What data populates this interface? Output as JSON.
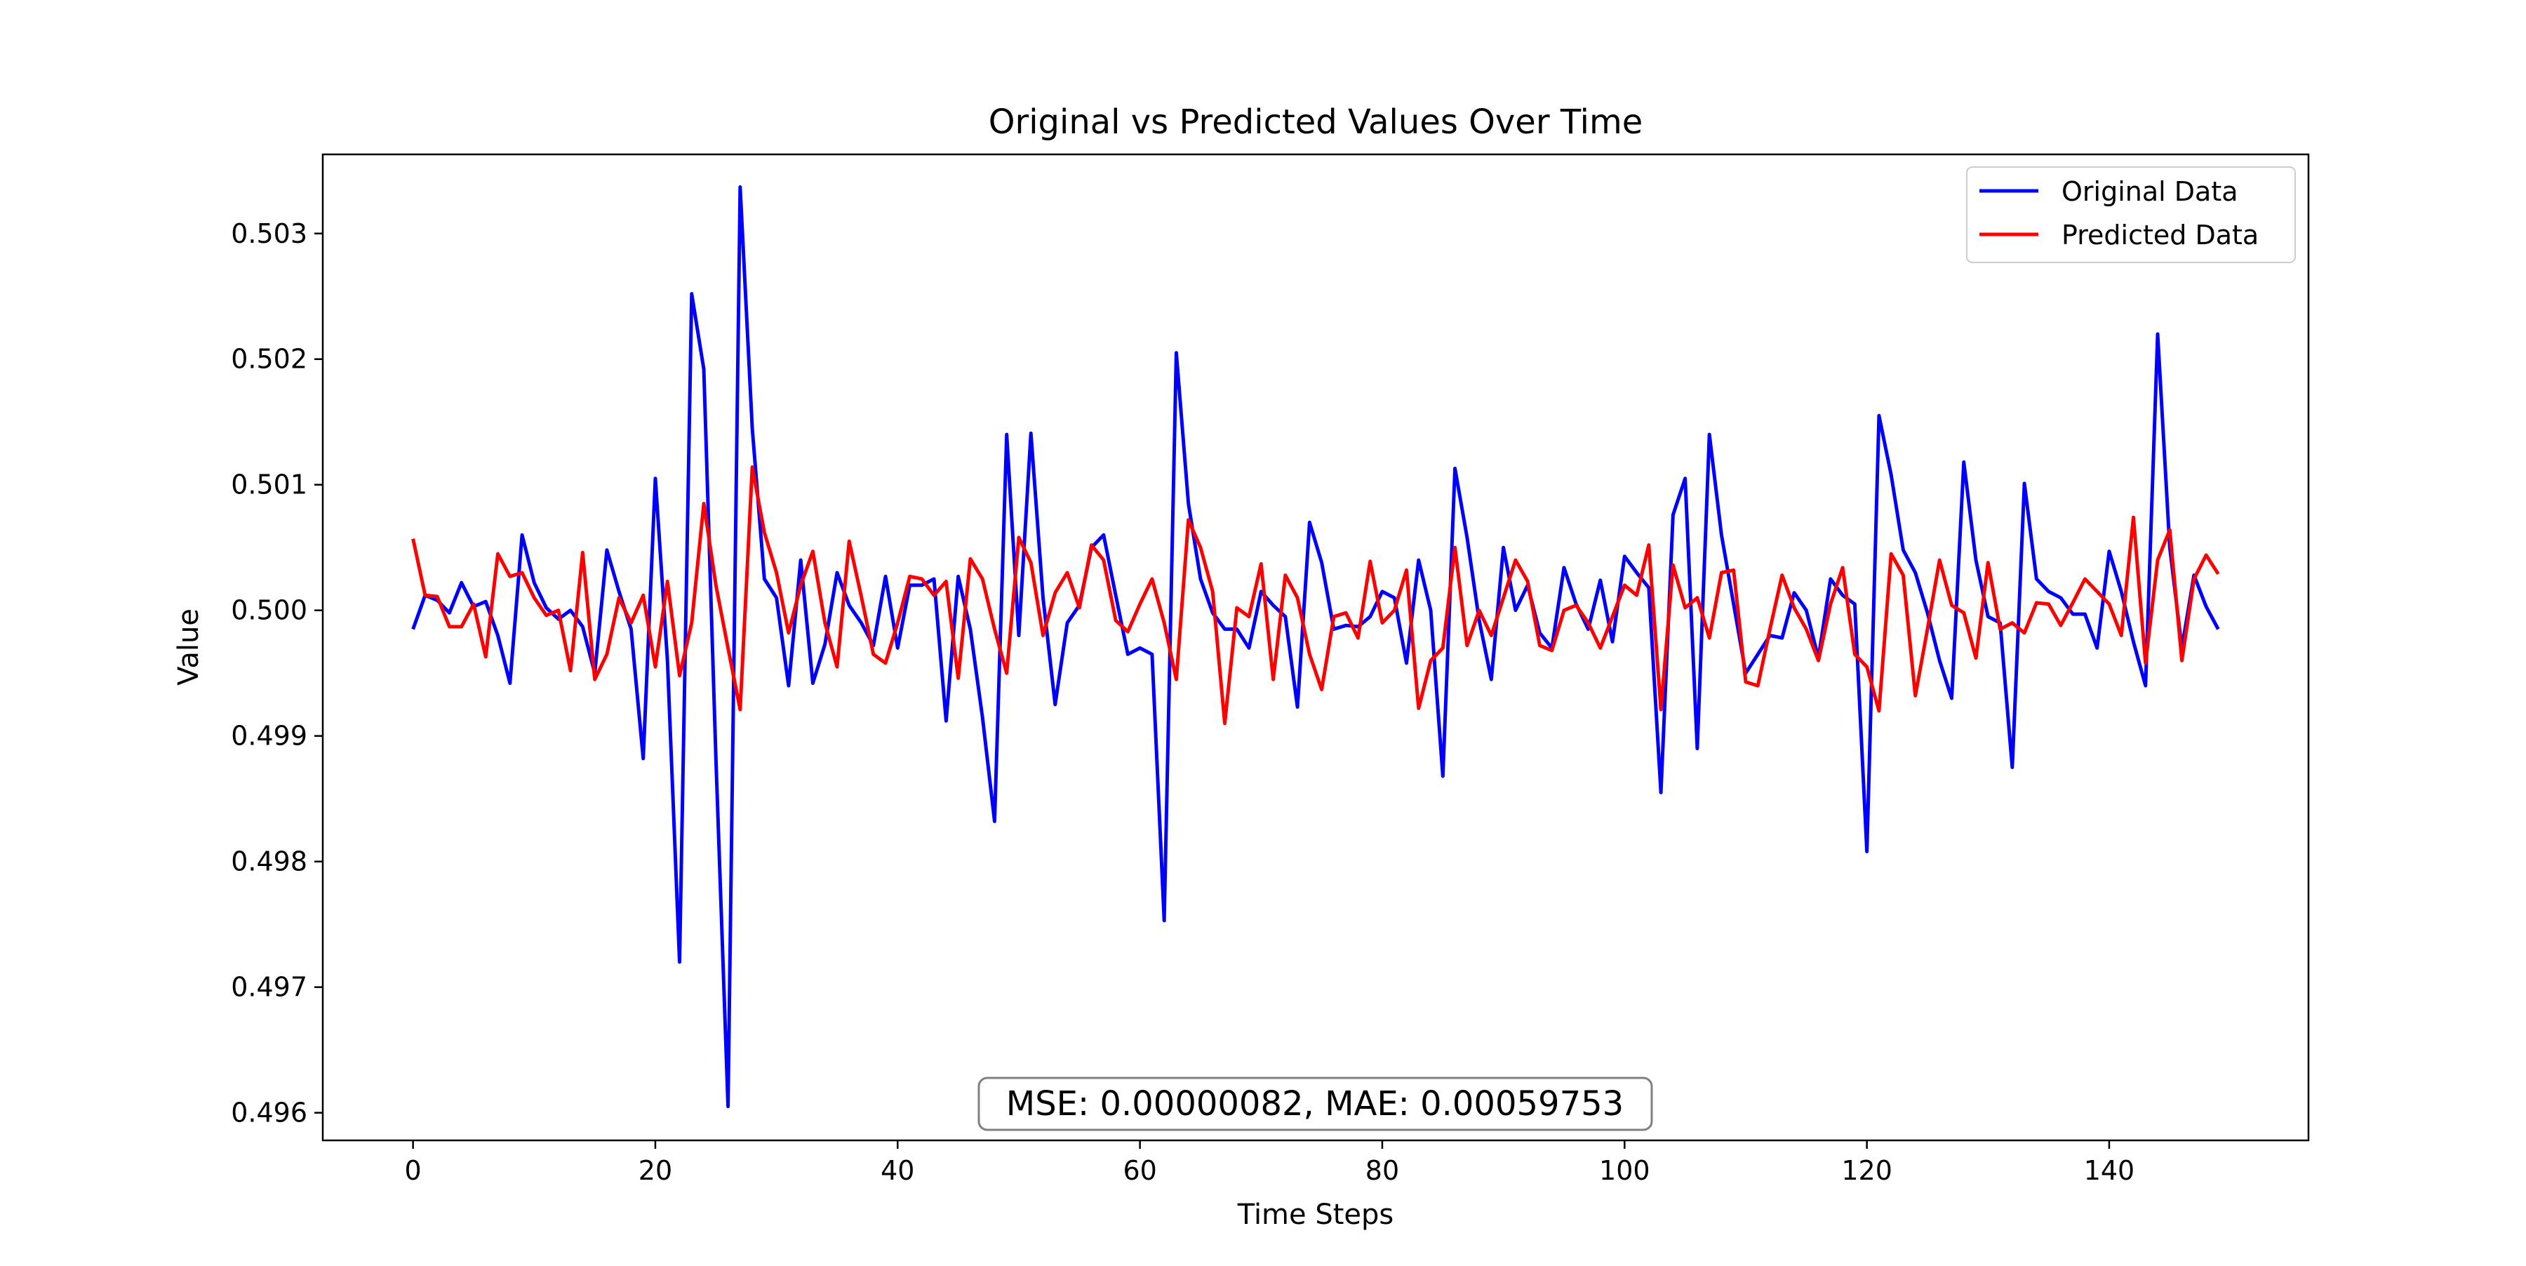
{
  "chart_data": {
    "type": "line",
    "title": "Original vs Predicted Values Over Time",
    "xlabel": "Time Steps",
    "ylabel": "Value",
    "xlim": [
      -7.45,
      156.45
    ],
    "ylim": [
      0.49578,
      0.50363
    ],
    "xticks": [
      0,
      20,
      40,
      60,
      80,
      100,
      120,
      140
    ],
    "yticks": [
      0.496,
      0.497,
      0.498,
      0.499,
      0.5,
      0.501,
      0.502,
      0.503
    ],
    "ytick_labels": [
      "0.496",
      "0.497",
      "0.498",
      "0.499",
      "0.500",
      "0.501",
      "0.502",
      "0.503"
    ],
    "grid": false,
    "legend_position": "top-right",
    "annotation": "MSE: 0.00000082, MAE: 0.00059753",
    "series": [
      {
        "name": "Original Data",
        "color": "#0000ff",
        "values": [
          0.49985,
          0.50012,
          0.50008,
          0.49998,
          0.50022,
          0.50003,
          0.50007,
          0.4998,
          0.49942,
          0.5006,
          0.50022,
          0.50002,
          0.49993,
          0.5,
          0.49987,
          0.4995,
          0.50048,
          0.50015,
          0.49985,
          0.49882,
          0.50105,
          0.4996,
          0.4972,
          0.50252,
          0.50192,
          0.49882,
          0.49605,
          0.50337,
          0.50145,
          0.50025,
          0.5001,
          0.4994,
          0.5004,
          0.49942,
          0.49973,
          0.5003,
          0.50004,
          0.4999,
          0.49972,
          0.50027,
          0.4997,
          0.5002,
          0.5002,
          0.50025,
          0.49912,
          0.50027,
          0.49985,
          0.49915,
          0.49832,
          0.5014,
          0.4998,
          0.50141,
          0.5001,
          0.49925,
          0.4999,
          0.50004,
          0.5005,
          0.5006,
          0.50012,
          0.49965,
          0.4997,
          0.49965,
          0.49753,
          0.50205,
          0.50085,
          0.50025,
          0.49998,
          0.49985,
          0.49985,
          0.4997,
          0.50015,
          0.50004,
          0.49995,
          0.49923,
          0.5007,
          0.50038,
          0.49985,
          0.49988,
          0.49987,
          0.49995,
          0.50015,
          0.5001,
          0.49958,
          0.5004,
          0.5,
          0.49868,
          0.50113,
          0.50058,
          0.49992,
          0.49945,
          0.5005,
          0.5,
          0.5002,
          0.49982,
          0.4997,
          0.50034,
          0.50005,
          0.49985,
          0.50024,
          0.49975,
          0.50043,
          0.5003,
          0.50018,
          0.49855,
          0.50076,
          0.50105,
          0.4989,
          0.5014,
          0.5006,
          0.50005,
          0.4995,
          0.49965,
          0.4998,
          0.49978,
          0.50014,
          0.5,
          0.49962,
          0.50025,
          0.50012,
          0.50005,
          0.49808,
          0.50155,
          0.50108,
          0.50048,
          0.5003,
          0.49998,
          0.4996,
          0.4993,
          0.50118,
          0.5004,
          0.49995,
          0.4999,
          0.49875,
          0.50101,
          0.50025,
          0.50015,
          0.5001,
          0.49997,
          0.49997,
          0.4997,
          0.50047,
          0.50015,
          0.49975,
          0.4994,
          0.5022,
          0.5005,
          0.4997,
          0.50028,
          0.50003,
          0.49985
        ]
      },
      {
        "name": "Predicted Data",
        "color": "#ff0000",
        "values": [
          0.50057,
          0.50012,
          0.50011,
          0.49987,
          0.49987,
          0.50005,
          0.49963,
          0.50045,
          0.50027,
          0.5003,
          0.5001,
          0.49996,
          0.5,
          0.49952,
          0.50046,
          0.49945,
          0.49965,
          0.5001,
          0.4999,
          0.50012,
          0.49955,
          0.50023,
          0.49948,
          0.4999,
          0.50085,
          0.5002,
          0.4997,
          0.49921,
          0.50114,
          0.50062,
          0.5003,
          0.49982,
          0.5002,
          0.50047,
          0.4999,
          0.49955,
          0.50055,
          0.50011,
          0.49965,
          0.49958,
          0.4999,
          0.50027,
          0.50025,
          0.50012,
          0.50023,
          0.49946,
          0.50041,
          0.50025,
          0.49985,
          0.4995,
          0.50058,
          0.50038,
          0.4998,
          0.50014,
          0.5003,
          0.50002,
          0.50052,
          0.5004,
          0.49992,
          0.49983,
          0.50005,
          0.50025,
          0.4999,
          0.49945,
          0.50072,
          0.5005,
          0.50015,
          0.4991,
          0.50002,
          0.49995,
          0.50037,
          0.49945,
          0.50028,
          0.5001,
          0.49965,
          0.49937,
          0.49995,
          0.49998,
          0.49978,
          0.50039,
          0.4999,
          0.5,
          0.50032,
          0.49922,
          0.4996,
          0.4997,
          0.5005,
          0.49972,
          0.5,
          0.4998,
          0.5001,
          0.5004,
          0.50023,
          0.49972,
          0.49968,
          0.5,
          0.50004,
          0.4999,
          0.4997,
          0.49995,
          0.5002,
          0.50012,
          0.50052,
          0.49921,
          0.50036,
          0.50002,
          0.5001,
          0.49978,
          0.5003,
          0.50032,
          0.49943,
          0.4994,
          0.49985,
          0.50028,
          0.50002,
          0.49985,
          0.4996,
          0.50005,
          0.50034,
          0.49965,
          0.49955,
          0.4992,
          0.50045,
          0.50028,
          0.49932,
          0.49985,
          0.5004,
          0.50004,
          0.49998,
          0.49962,
          0.50038,
          0.49985,
          0.4999,
          0.49982,
          0.50006,
          0.50005,
          0.49988,
          0.50006,
          0.50025,
          0.50015,
          0.50005,
          0.4998,
          0.50074,
          0.49958,
          0.5004,
          0.50064,
          0.4996,
          0.50025,
          0.50044,
          0.50029
        ]
      }
    ]
  }
}
